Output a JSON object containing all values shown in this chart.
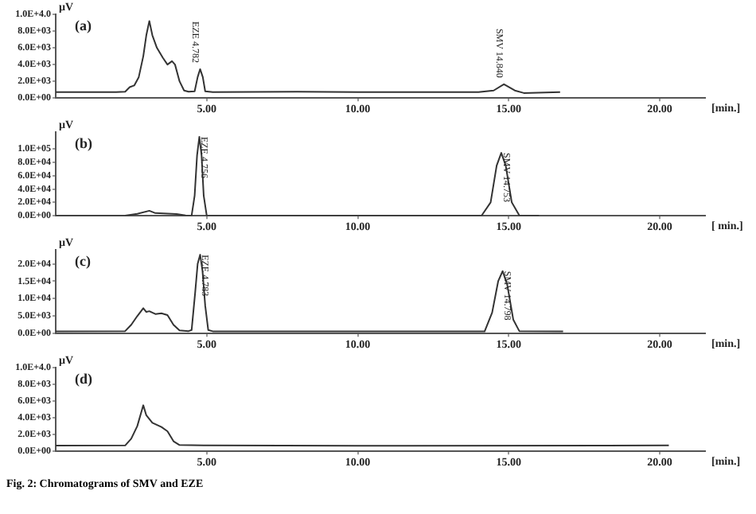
{
  "chart_data": [
    {
      "type": "line",
      "title": "(a)",
      "ylabel": "µV",
      "xlabel": "[min.]",
      "xlim": [
        0,
        21.5
      ],
      "xticks": [
        {
          "value": 5,
          "label": "5.00"
        },
        {
          "value": 10,
          "label": "10.00"
        },
        {
          "value": 15,
          "label": "15.00"
        },
        {
          "value": 20,
          "label": "20.00"
        }
      ],
      "ylim": [
        0,
        10000
      ],
      "yticks": [
        {
          "value": 0,
          "label": "0.0E+00"
        },
        {
          "value": 2000,
          "label": "2.0E+03"
        },
        {
          "value": 4000,
          "label": "4.0E+03"
        },
        {
          "value": 6000,
          "label": "6.0E+03"
        },
        {
          "value": 8000,
          "label": "8.0E+03"
        },
        {
          "value": 10000,
          "label": "1.0E+4.0"
        }
      ],
      "grid": false,
      "legend": false,
      "marker": "none",
      "series": [
        {
          "color": "#333333",
          "x": [
            0,
            2.0,
            2.3,
            2.45,
            2.6,
            2.75,
            2.9,
            3.0,
            3.1,
            3.2,
            3.35,
            3.55,
            3.7,
            3.85,
            3.95,
            4.1,
            4.25,
            4.4,
            4.6,
            4.7,
            4.782,
            4.87,
            4.95,
            5.2,
            8.0,
            10,
            14.0,
            14.5,
            14.84,
            15.2,
            15.5,
            16.7
          ],
          "values": [
            700,
            720,
            760,
            1300,
            1500,
            2500,
            5000,
            7500,
            9200,
            7500,
            6000,
            4800,
            4000,
            4400,
            4000,
            2000,
            900,
            750,
            800,
            2500,
            3450,
            2500,
            800,
            700,
            750,
            700,
            700,
            900,
            1640,
            900,
            600,
            700
          ]
        }
      ],
      "annotations": [
        {
          "text": "EZE 4.782",
          "x": 4.782,
          "y": 3450
        },
        {
          "text": "SMV 14.840",
          "x": 14.84,
          "y": 1640
        }
      ]
    },
    {
      "type": "line",
      "title": "(b)",
      "ylabel": "µV",
      "xlabel": "[ min.]",
      "xlim": [
        0,
        21.5
      ],
      "xticks": [
        {
          "value": 5,
          "label": "5.00"
        },
        {
          "value": 10,
          "label": "10.00"
        },
        {
          "value": 15,
          "label": "15.00"
        },
        {
          "value": 20,
          "label": "20.00"
        }
      ],
      "ylim": [
        0,
        125000
      ],
      "yticks": [
        {
          "value": 0,
          "label": "0.0E+00"
        },
        {
          "value": 20000,
          "label": "2.0E+04"
        },
        {
          "value": 40000,
          "label": "4.0E+04"
        },
        {
          "value": 60000,
          "label": "6.0E+04"
        },
        {
          "value": 80000,
          "label": "8.0E+04"
        },
        {
          "value": 100000,
          "label": "1.0E+05"
        }
      ],
      "grid": false,
      "legend": false,
      "marker": "none",
      "series": [
        {
          "color": "#333333",
          "x": [
            0,
            2.3,
            2.7,
            3.1,
            3.3,
            4.0,
            4.3,
            4.5,
            4.6,
            4.68,
            4.756,
            4.83,
            4.9,
            5.0,
            10,
            14.1,
            14.4,
            14.6,
            14.753,
            14.9,
            15.1,
            15.35,
            16
          ],
          "values": [
            0,
            200,
            3000,
            7500,
            4000,
            2500,
            500,
            300,
            30000,
            90000,
            118000,
            90000,
            30000,
            500,
            300,
            300,
            20000,
            75000,
            94000,
            75000,
            20000,
            500,
            300
          ]
        }
      ],
      "annotations": [
        {
          "text": "EZE 4.756",
          "x": 4.756,
          "y": 118000
        },
        {
          "text": "SMV 14.753",
          "x": 14.753,
          "y": 94000
        }
      ]
    },
    {
      "type": "line",
      "title": "(c)",
      "ylabel": "µV",
      "xlabel": "[min.]",
      "xlim": [
        0,
        21.5
      ],
      "xticks": [
        {
          "value": 5,
          "label": "5.00"
        },
        {
          "value": 10,
          "label": "10.00"
        },
        {
          "value": 15,
          "label": "15.00"
        },
        {
          "value": 20,
          "label": "20.00"
        }
      ],
      "ylim": [
        0,
        24000
      ],
      "yticks": [
        {
          "value": 0,
          "label": "0.0E+00"
        },
        {
          "value": 5000,
          "label": "5.0E+03"
        },
        {
          "value": 10000,
          "label": "1.0E+04"
        },
        {
          "value": 15000,
          "label": "1.5E+04"
        },
        {
          "value": 20000,
          "label": "2.0E+04"
        }
      ],
      "grid": false,
      "legend": false,
      "marker": "none",
      "series": [
        {
          "color": "#333333",
          "x": [
            0,
            2.3,
            2.5,
            2.7,
            2.9,
            3.0,
            3.1,
            3.3,
            3.5,
            3.7,
            3.9,
            4.1,
            4.4,
            4.5,
            4.62,
            4.7,
            4.783,
            4.86,
            4.95,
            5.05,
            5.2,
            10,
            14.2,
            14.45,
            14.65,
            14.798,
            14.95,
            15.15,
            15.35,
            16.8
          ],
          "values": [
            640,
            700,
            2500,
            5000,
            7280,
            6200,
            6400,
            5600,
            5800,
            5300,
            2500,
            900,
            700,
            1000,
            12000,
            20000,
            22600,
            18000,
            8000,
            1000,
            640,
            600,
            600,
            6000,
            15000,
            17900,
            14000,
            4000,
            700,
            640
          ]
        }
      ],
      "annotations": [
        {
          "text": "EZE 4.783",
          "x": 4.783,
          "y": 22600
        },
        {
          "text": "SMV 14.798",
          "x": 14.798,
          "y": 17900
        }
      ]
    },
    {
      "type": "line",
      "title": "(d)",
      "ylabel": "µV",
      "xlabel": "[min.]",
      "xlim": [
        0,
        21.5
      ],
      "xticks": [
        {
          "value": 5,
          "label": "5.00"
        },
        {
          "value": 10,
          "label": "10.00"
        },
        {
          "value": 15,
          "label": "15.00"
        },
        {
          "value": 20,
          "label": "20.00"
        }
      ],
      "ylim": [
        0,
        10000
      ],
      "yticks": [
        {
          "value": 0,
          "label": "0.0E+00"
        },
        {
          "value": 2000,
          "label": "2.0E+03"
        },
        {
          "value": 4000,
          "label": "4.0E+03"
        },
        {
          "value": 6000,
          "label": "6.0E+03"
        },
        {
          "value": 8000,
          "label": "8.0E+03"
        },
        {
          "value": 10000,
          "label": "1.0E+4.0"
        }
      ],
      "grid": false,
      "legend": false,
      "marker": "none",
      "series": [
        {
          "color": "#333333",
          "x": [
            0,
            2.3,
            2.5,
            2.7,
            2.9,
            3.0,
            3.2,
            3.5,
            3.7,
            3.9,
            4.1,
            5,
            10,
            20.3
          ],
          "values": [
            690,
            700,
            1500,
            3000,
            5500,
            4300,
            3400,
            2900,
            2400,
            1200,
            750,
            700,
            650,
            700
          ]
        }
      ],
      "annotations": [
        "Fig. 2: Chromatograms of SMV and EZE"
      ]
    }
  ]
}
